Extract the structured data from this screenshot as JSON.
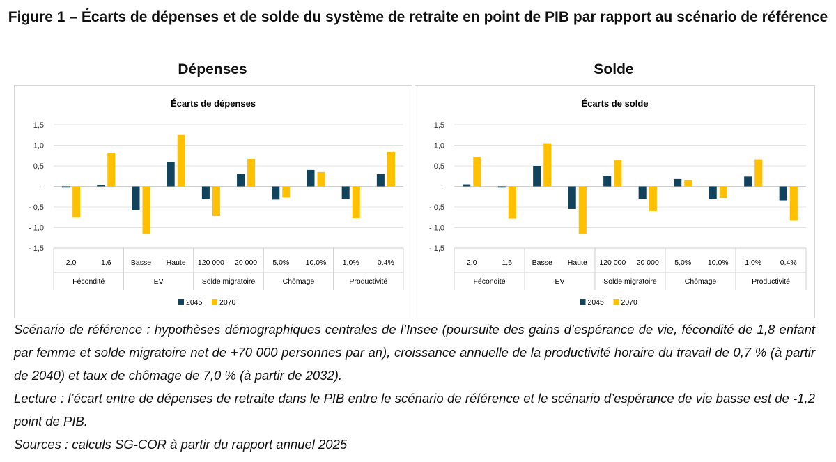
{
  "figure_title": "Figure 1 – Écarts de dépenses et de solde du système de retraite en point de PIB par rapport au scénario de référence",
  "panels": [
    "Dépenses",
    "Solde"
  ],
  "colors": {
    "2045": "#12435c",
    "2070": "#ffc000"
  },
  "chart_data": [
    {
      "type": "bar",
      "title": "Écarts de dépenses",
      "ylim": [
        -1.5,
        1.5
      ],
      "yticks": [
        "1,5",
        "1,0",
        "0,5",
        "-",
        "- 0,5",
        "- 1,0",
        "- 1,5"
      ],
      "categories": [
        "2,0",
        "1,6",
        "Basse",
        "Haute",
        "120 000",
        "20 000",
        "5,0%",
        "10,0%",
        "1,0%",
        "0,4%"
      ],
      "groups": [
        "Fécondité",
        "EV",
        "Solde migratoire",
        "Chômage",
        "Productivité"
      ],
      "grid": true,
      "legend": "bottom",
      "series": [
        {
          "name": "2045",
          "values": [
            -0.03,
            0.03,
            -0.57,
            0.6,
            -0.3,
            0.31,
            -0.32,
            0.4,
            -0.3,
            0.3
          ]
        },
        {
          "name": "2070",
          "values": [
            -0.76,
            0.82,
            -1.16,
            1.25,
            -0.72,
            0.67,
            -0.27,
            0.35,
            -0.77,
            0.84
          ]
        }
      ]
    },
    {
      "type": "bar",
      "title": "Écarts de solde",
      "ylim": [
        -1.5,
        1.5
      ],
      "yticks": [
        "1,5",
        "1,0",
        "0,5",
        "-",
        "- 0,5",
        "- 1,0",
        "- 1,5"
      ],
      "categories": [
        "2,0",
        "1,6",
        "Basse",
        "Haute",
        "120 000",
        "20 000",
        "5,0%",
        "10,0%",
        "1,0%",
        "0,4%"
      ],
      "groups": [
        "Fécondité",
        "EV",
        "Solde migratoire",
        "Chômage",
        "Productivité"
      ],
      "grid": true,
      "legend": "bottom",
      "series": [
        {
          "name": "2045",
          "values": [
            0.05,
            -0.03,
            0.5,
            -0.55,
            0.26,
            -0.3,
            0.18,
            -0.3,
            0.24,
            -0.34
          ]
        },
        {
          "name": "2070",
          "values": [
            0.72,
            -0.78,
            1.05,
            -1.16,
            0.64,
            -0.6,
            0.15,
            -0.28,
            0.66,
            -0.83
          ]
        }
      ]
    }
  ],
  "notes": [
    "Scénario de référence : hypothèses démographiques centrales de l’Insee (poursuite des gains d’espérance de vie, fécondité de 1,8 enfant par femme et solde migratoire net de +70 000 personnes par an), croissance annuelle de la productivité horaire du travail de 0,7 % (à partir de 2040) et taux de chômage de 7,0 % (à partir de 2032).",
    "Lecture : l’écart entre de dépenses de retraite dans le PIB entre le scénario de référence et le scénario d’espérance de vie basse est de -1,2 point de PIB.",
    "Sources : calculs SG-COR à partir du rapport annuel 2025"
  ]
}
